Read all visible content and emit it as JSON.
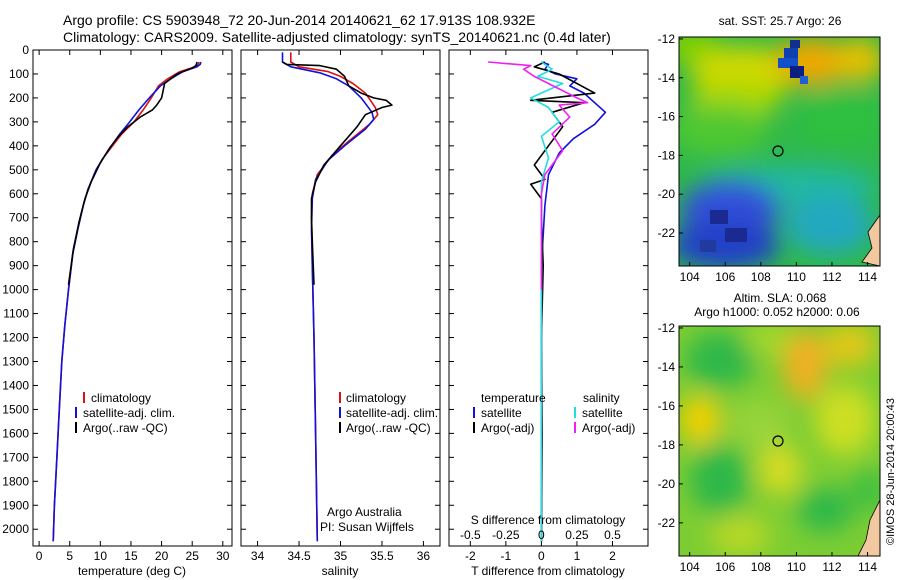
{
  "header": {
    "line1": "Argo profile: CS 5903948_72 20-Jun-2014 20140621_62 17.913S 108.932E",
    "line2": "Climatology: CARS2009. Satellite-adjusted climatology: synTS_20140621.nc (0.4d later)"
  },
  "colors": {
    "climatology": "#dd1111",
    "satellite": "#1111dd",
    "argo": "#000000",
    "sal_satellite": "#22dddd",
    "sal_argo": "#ee22ee"
  },
  "chart_data": [
    {
      "type": "line",
      "id": "temperature",
      "xlabel": "temperature (deg C)",
      "xlim": [
        -1,
        31.5
      ],
      "ylim": [
        0,
        2070
      ],
      "yticks": [
        0,
        100,
        200,
        300,
        400,
        500,
        600,
        700,
        800,
        900,
        1000,
        1100,
        1200,
        1300,
        1400,
        1500,
        1600,
        1700,
        1800,
        1900,
        2000
      ],
      "xticks": [
        0,
        5,
        10,
        15,
        20,
        25,
        30
      ],
      "legend": [
        "climatology",
        "satellite-adj. clim.",
        "Argo(..raw -QC)"
      ],
      "series": [
        {
          "name": "climatology",
          "color_key": "climatology",
          "points": [
            [
              26.1,
              50
            ],
            [
              26,
              60
            ],
            [
              25.5,
              70
            ],
            [
              23,
              90
            ],
            [
              21,
              120
            ],
            [
              19.5,
              150
            ],
            [
              18.3,
              200
            ],
            [
              17,
              250
            ],
            [
              15.5,
              300
            ],
            [
              13.5,
              350
            ],
            [
              12,
              400
            ],
            [
              10.5,
              450
            ],
            [
              9.3,
              500
            ],
            [
              8,
              580
            ],
            [
              7.2,
              650
            ],
            [
              6.3,
              750
            ],
            [
              5.5,
              850
            ],
            [
              4.8,
              1000
            ],
            [
              4.2,
              1150
            ],
            [
              3.7,
              1300
            ],
            [
              3.3,
              1500
            ],
            [
              2.9,
              1700
            ],
            [
              2.5,
              1900
            ],
            [
              2.3,
              2050
            ]
          ]
        },
        {
          "name": "satellite-adj. clim.",
          "color_key": "satellite",
          "points": [
            [
              26.4,
              50
            ],
            [
              26.3,
              60
            ],
            [
              25.8,
              70
            ],
            [
              23.5,
              90
            ],
            [
              21.5,
              120
            ],
            [
              19.8,
              150
            ],
            [
              18,
              200
            ],
            [
              16.3,
              250
            ],
            [
              14.8,
              300
            ],
            [
              13.2,
              350
            ],
            [
              11.8,
              400
            ],
            [
              10.5,
              450
            ],
            [
              9.3,
              500
            ],
            [
              8,
              580
            ],
            [
              7.2,
              650
            ],
            [
              6.3,
              750
            ],
            [
              5.5,
              850
            ],
            [
              4.8,
              1000
            ],
            [
              4.2,
              1150
            ],
            [
              3.7,
              1300
            ],
            [
              3.3,
              1500
            ],
            [
              2.9,
              1700
            ],
            [
              2.5,
              1900
            ],
            [
              2.3,
              2050
            ]
          ]
        },
        {
          "name": "Argo(..raw -QC)",
          "color_key": "argo",
          "points": [
            [
              25.8,
              50
            ],
            [
              25.6,
              65
            ],
            [
              25,
              75
            ],
            [
              22.5,
              100
            ],
            [
              20.5,
              140
            ],
            [
              20,
              200
            ],
            [
              19.2,
              230
            ],
            [
              18.5,
              250
            ],
            [
              16.5,
              280
            ],
            [
              14.5,
              320
            ],
            [
              13,
              360
            ],
            [
              11.5,
              410
            ],
            [
              10,
              470
            ],
            [
              8.5,
              550
            ],
            [
              7.5,
              620
            ],
            [
              6.5,
              720
            ],
            [
              5.6,
              830
            ],
            [
              4.8,
              980
            ]
          ]
        }
      ]
    },
    {
      "type": "line",
      "id": "salinity",
      "xlabel": "salinity",
      "xlim": [
        33.8,
        36.2
      ],
      "ylim": [
        0,
        2070
      ],
      "xticks": [
        34,
        34.5,
        35,
        35.5,
        36
      ],
      "legend": [
        "climatology",
        "satellite-adj. clim.",
        "Argo(..raw -QC)"
      ],
      "notes": [
        "Argo Australia",
        "PI: Susan Wijffels"
      ],
      "series": [
        {
          "name": "climatology",
          "color_key": "climatology",
          "points": [
            [
              34.4,
              10
            ],
            [
              34.4,
              50
            ],
            [
              34.5,
              70
            ],
            [
              34.85,
              90
            ],
            [
              35.0,
              110
            ],
            [
              35.15,
              140
            ],
            [
              35.3,
              180
            ],
            [
              35.42,
              240
            ],
            [
              35.45,
              270
            ],
            [
              35.35,
              310
            ],
            [
              35.1,
              380
            ],
            [
              34.9,
              440
            ],
            [
              34.72,
              520
            ],
            [
              34.66,
              600
            ],
            [
              34.65,
              700
            ],
            [
              34.66,
              900
            ],
            [
              34.68,
              1200
            ],
            [
              34.7,
              1600
            ],
            [
              34.72,
              2050
            ]
          ]
        },
        {
          "name": "satellite-adj. clim.",
          "color_key": "satellite",
          "points": [
            [
              34.3,
              10
            ],
            [
              34.3,
              50
            ],
            [
              34.4,
              70
            ],
            [
              34.75,
              95
            ],
            [
              34.95,
              120
            ],
            [
              35.1,
              150
            ],
            [
              35.25,
              200
            ],
            [
              35.38,
              260
            ],
            [
              35.4,
              290
            ],
            [
              35.3,
              330
            ],
            [
              35.05,
              400
            ],
            [
              34.85,
              460
            ],
            [
              34.7,
              540
            ],
            [
              34.66,
              620
            ],
            [
              34.65,
              750
            ],
            [
              34.66,
              900
            ],
            [
              34.68,
              1200
            ],
            [
              34.7,
              1600
            ],
            [
              34.72,
              2050
            ]
          ]
        },
        {
          "name": "Argo(..raw -QC)",
          "color_key": "argo",
          "points": [
            [
              34.3,
              50
            ],
            [
              34.35,
              60
            ],
            [
              34.75,
              65
            ],
            [
              34.95,
              80
            ],
            [
              35.05,
              110
            ],
            [
              35.1,
              150
            ],
            [
              35.25,
              180
            ],
            [
              35.4,
              200
            ],
            [
              35.55,
              210
            ],
            [
              35.62,
              230
            ],
            [
              35.5,
              240
            ],
            [
              35.3,
              270
            ],
            [
              35.2,
              320
            ],
            [
              35.0,
              400
            ],
            [
              34.8,
              480
            ],
            [
              34.7,
              550
            ],
            [
              34.65,
              620
            ],
            [
              34.65,
              700
            ],
            [
              34.66,
              800
            ],
            [
              34.68,
              980
            ]
          ]
        }
      ]
    },
    {
      "type": "line",
      "id": "differences",
      "xlabel": "T difference from climatology",
      "xlabel_top": "S difference from climatology",
      "xlim": [
        -2.6,
        3.0
      ],
      "ylim": [
        0,
        2070
      ],
      "xticks": [
        -2,
        -1,
        0,
        1,
        2
      ],
      "xticks_s_labels": [
        "-0.5",
        "-0.25",
        "0",
        "0.25",
        "0.5"
      ],
      "legend_t_title": "temperature",
      "legend_s_title": "salinity",
      "legend_t": [
        "satellite",
        "Argo(-adj)"
      ],
      "legend_s": [
        "satellite",
        "Argo(-adj)"
      ],
      "series": [
        {
          "name": "T satellite",
          "color_key": "satellite",
          "points": [
            [
              0,
              50
            ],
            [
              0.2,
              60
            ],
            [
              0.1,
              80
            ],
            [
              0.4,
              100
            ],
            [
              1.0,
              120
            ],
            [
              0.8,
              150
            ],
            [
              1.2,
              180
            ],
            [
              1.8,
              260
            ],
            [
              1.5,
              310
            ],
            [
              0.9,
              370
            ],
            [
              0.5,
              430
            ],
            [
              0.2,
              520
            ],
            [
              0.1,
              650
            ],
            [
              0.0,
              900
            ],
            [
              0.0,
              1300
            ],
            [
              0.0,
              2050
            ]
          ]
        },
        {
          "name": "T Argo(-adj)",
          "color_key": "argo",
          "points": [
            [
              0.1,
              50
            ],
            [
              -0.2,
              70
            ],
            [
              0.5,
              100
            ],
            [
              1.5,
              180
            ],
            [
              -0.3,
              210
            ],
            [
              1.2,
              220
            ],
            [
              0.3,
              260
            ],
            [
              0.6,
              320
            ],
            [
              0.2,
              400
            ],
            [
              -0.2,
              480
            ],
            [
              0.1,
              540
            ],
            [
              -0.3,
              560
            ],
            [
              0.0,
              620
            ],
            [
              0.0,
              700
            ],
            [
              0.05,
              900
            ],
            [
              0.0,
              1200
            ],
            [
              0.02,
              1600
            ],
            [
              0.0,
              2050
            ]
          ]
        },
        {
          "name": "S satellite",
          "color_key": "sal_satellite",
          "points": [
            [
              0,
              50
            ],
            [
              0.3,
              80
            ],
            [
              -0.1,
              110
            ],
            [
              0.6,
              140
            ],
            [
              -0.3,
              200
            ],
            [
              0.2,
              240
            ],
            [
              0.5,
              300
            ],
            [
              0.0,
              360
            ],
            [
              0.2,
              450
            ],
            [
              0.0,
              550
            ],
            [
              0.0,
              700
            ],
            [
              0.0,
              1000
            ],
            [
              0.0,
              2050
            ]
          ]
        },
        {
          "name": "S Argo(-adj)",
          "color_key": "sal_argo",
          "points": [
            [
              -1.5,
              50
            ],
            [
              -0.3,
              65
            ],
            [
              -0.5,
              80
            ],
            [
              -0.2,
              110
            ],
            [
              1.0,
              200
            ],
            [
              1.3,
              220
            ],
            [
              0.5,
              230
            ],
            [
              0.8,
              280
            ],
            [
              0.3,
              350
            ],
            [
              0.6,
              420
            ],
            [
              0.1,
              520
            ],
            [
              0.0,
              600
            ],
            [
              0.0,
              800
            ],
            [
              0.0,
              1000
            ]
          ]
        }
      ]
    }
  ],
  "maps": {
    "sst": {
      "title": "sat. SST: 25.7 Argo: 26",
      "xticks": [
        "104",
        "106",
        "108",
        "110",
        "112",
        "114"
      ],
      "yticks": [
        "-12",
        "-14",
        "-16",
        "-18",
        "-20",
        "-22"
      ],
      "point": [
        108.932,
        -17.913
      ]
    },
    "sla": {
      "title1": "Altim. SLA: 0.068",
      "title2": "Argo h1000: 0.052 h2000: 0.06",
      "xticks": [
        "104",
        "106",
        "108",
        "110",
        "112",
        "114"
      ],
      "yticks": [
        "-12",
        "-14",
        "-16",
        "-18",
        "-20",
        "-22"
      ],
      "point": [
        108.932,
        -17.913
      ]
    },
    "credit": "©IMOS 28-Jun-2014 20:00:43"
  }
}
